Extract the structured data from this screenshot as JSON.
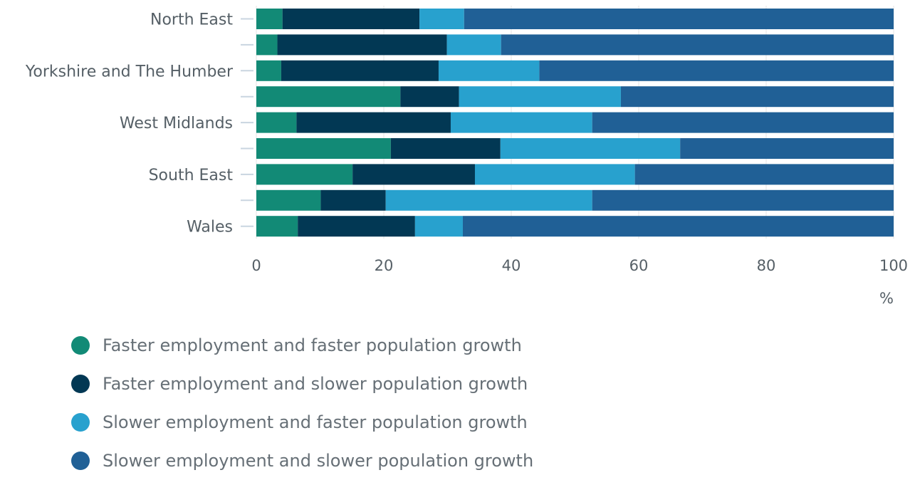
{
  "chart_data": {
    "type": "bar",
    "orientation": "horizontal",
    "stacked": true,
    "categories": [
      "North East",
      "",
      "Yorkshire and The Humber",
      "",
      "West Midlands",
      "",
      "South East",
      "",
      "Wales"
    ],
    "series": [
      {
        "name": "Faster employment and faster population growth",
        "color": "#128a76",
        "values": [
          4.1,
          3.3,
          3.9,
          22.6,
          6.3,
          21.1,
          15.1,
          10.1,
          6.5
        ]
      },
      {
        "name": "Faster employment and slower population growth",
        "color": "#023854",
        "values": [
          21.5,
          26.6,
          24.7,
          9.2,
          24.2,
          17.2,
          19.2,
          10.2,
          18.4
        ]
      },
      {
        "name": "Slower employment and faster population growth",
        "color": "#28a1ce",
        "values": [
          7.0,
          8.5,
          15.8,
          25.4,
          22.2,
          28.2,
          25.1,
          32.4,
          7.5
        ]
      },
      {
        "name": "Slower employment and slower population growth",
        "color": "#206096",
        "values": [
          67.4,
          61.6,
          55.6,
          42.8,
          47.3,
          33.5,
          40.6,
          47.3,
          67.6
        ]
      }
    ],
    "xlim": [
      0,
      100
    ],
    "xticks": [
      "0",
      "20",
      "40",
      "60",
      "80",
      "100"
    ],
    "xlabel": "%",
    "grid": true,
    "legend_position": "bottom"
  }
}
